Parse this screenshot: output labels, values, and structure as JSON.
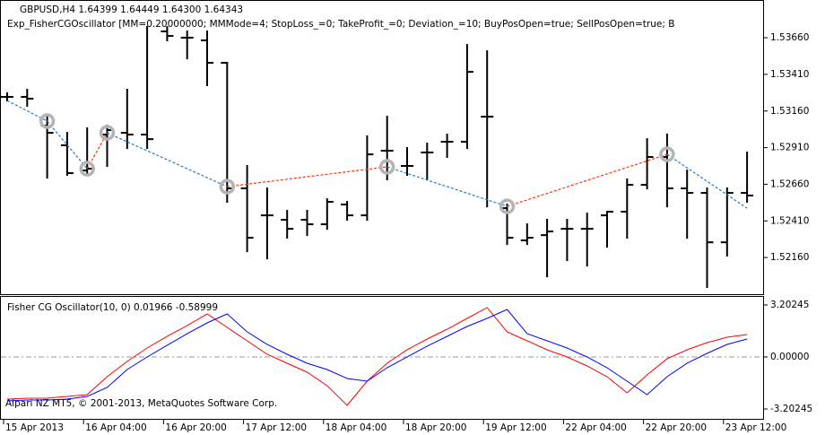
{
  "chart_data": [
    {
      "type": "ohlc",
      "title": "GBPUSD,H4  1.64399 1.64449 1.64300 1.64343",
      "subtitle": "Exp_FisherCGOscillator [MM=0.20000000; MMMode=4; StopLoss_=0; TakeProfit_=0; Deviation_=10; BuyPosOpen=true; SellPosOpen=true; B",
      "categories": [
        "15 Apr 2013",
        null,
        null,
        null,
        "16 Apr 04:00",
        null,
        null,
        null,
        "16 Apr 20:00",
        null,
        null,
        null,
        "17 Apr 12:00",
        null,
        null,
        null,
        "18 Apr 04:00",
        null,
        null,
        null,
        "18 Apr 20:00",
        null,
        null,
        null,
        "19 Apr 12:00",
        null,
        null,
        null,
        "22 Apr 04:00",
        null,
        null,
        null,
        "22 Apr 20:00",
        null,
        null,
        null,
        "23 Apr 12:00",
        null
      ],
      "open": [
        1.53256,
        1.53256,
        1.5306,
        1.52926,
        1.52754,
        1.52999,
        1.53011,
        1.52999,
        1.53703,
        1.5366,
        1.53642,
        1.53489,
        1.52632,
        1.52448,
        1.52418,
        1.52418,
        1.52387,
        1.52522,
        1.52448,
        1.52889,
        1.52785,
        1.52877,
        1.5295,
        1.5295,
        1.53121,
        1.52497,
        1.52277,
        1.52313,
        1.52356,
        1.52356,
        1.52448,
        1.52473,
        1.52656,
        1.52846,
        1.52632,
        1.52601,
        1.52264,
        1.52601
      ],
      "high": [
        1.53281,
        1.53305,
        1.53121,
        1.53011,
        1.53042,
        1.5306,
        1.53305,
        1.53733,
        1.53733,
        1.53703,
        1.53703,
        1.53489,
        1.52785,
        1.52632,
        1.52479,
        1.52479,
        1.52558,
        1.5254,
        1.52987,
        1.53121,
        1.52907,
        1.52938,
        1.52999,
        1.53611,
        1.53568,
        1.52522,
        1.52387,
        1.52418,
        1.52418,
        1.5246,
        1.52473,
        1.52693,
        1.52968,
        1.52999,
        1.52754,
        1.52632,
        1.52632,
        1.52877
      ],
      "low": [
        1.53231,
        1.53195,
        1.52705,
        1.52724,
        1.52724,
        1.52785,
        1.52907,
        1.52907,
        1.53642,
        1.53519,
        1.53336,
        1.5254,
        1.52203,
        1.52154,
        1.52295,
        1.52313,
        1.52356,
        1.52418,
        1.52418,
        1.52693,
        1.52724,
        1.52693,
        1.52846,
        1.52907,
        1.52509,
        1.52252,
        1.52252,
        1.52032,
        1.52142,
        1.52105,
        1.52234,
        1.52295,
        1.52632,
        1.52509,
        1.52295,
        1.51959,
        1.52173,
        1.5254
      ],
      "close": [
        1.53256,
        1.53244,
        1.53011,
        1.52736,
        1.52766,
        1.5303,
        1.52999,
        1.52968,
        1.53672,
        1.5366,
        1.53489,
        1.52632,
        1.52295,
        1.52448,
        1.52356,
        1.52387,
        1.5254,
        1.52448,
        1.52864,
        1.52889,
        1.52785,
        1.52877,
        1.5295,
        1.53427,
        1.53121,
        1.52295,
        1.52295,
        1.52338,
        1.52356,
        1.52356,
        1.52473,
        1.52656,
        1.52846,
        1.52632,
        1.52601,
        1.52264,
        1.52601,
        1.52583
      ],
      "color": "#000000",
      "signal": {
        "values": [
          1.53231,
          null,
          1.53091,
          null,
          1.52766,
          1.53011,
          null,
          null,
          null,
          null,
          null,
          1.52644,
          null,
          null,
          null,
          null,
          null,
          null,
          null,
          1.52779,
          null,
          null,
          null,
          null,
          null,
          1.52509,
          null,
          null,
          null,
          null,
          null,
          null,
          null,
          1.52864,
          null,
          null,
          null,
          1.52497
        ],
        "up_color": "#ff3300",
        "down_color": "#1f7fc8",
        "marker_color": "#b4b4b4"
      },
      "ylim": [
        1.5191,
        1.53899
      ],
      "yticks": [
        {
          "value": 1.5366,
          "label": "1.53660"
        },
        {
          "value": 1.5341,
          "label": "1.53410"
        },
        {
          "value": 1.5316,
          "label": "1.53160"
        },
        {
          "value": 1.5291,
          "label": "1.52910"
        },
        {
          "value": 1.5266,
          "label": "1.52660"
        },
        {
          "value": 1.5241,
          "label": "1.52410"
        },
        {
          "value": 1.5216,
          "label": "1.52160"
        }
      ]
    },
    {
      "type": "line",
      "title": "Fisher CG Oscillator(10, 0) 0.01966 -0.58999",
      "annotation": "Alpari NZ MT5, © 2001-2013, MetaQuotes Software Corp.",
      "series": [
        {
          "color": "#ff0000",
          "values": [
            -2.595,
            -2.54,
            -2.54,
            -2.429,
            -2.319,
            -1.215,
            -0.276,
            0.552,
            1.27,
            1.932,
            2.65,
            1.822,
            0.994,
            0.166,
            -0.386,
            -0.938,
            -1.767,
            -2.981,
            -1.491,
            -0.386,
            0.442,
            1.104,
            1.711,
            2.374,
            3.037,
            1.546,
            0.994,
            0.442,
            0,
            -0.552,
            -1.215,
            -2.208,
            -1.104,
            -0.11,
            0.442,
            0.883,
            1.215,
            1.38
          ]
        },
        {
          "color": "#0000ff",
          "values": [
            -2.705,
            -2.65,
            -2.65,
            -2.595,
            -2.429,
            -1.877,
            -0.773,
            0,
            0.718,
            1.435,
            2.098,
            2.65,
            1.546,
            0.773,
            0.166,
            -0.386,
            -0.773,
            -1.325,
            -1.491,
            -0.663,
            0,
            0.663,
            1.27,
            1.877,
            2.374,
            2.926,
            1.435,
            0.994,
            0.552,
            0,
            -0.663,
            -1.491,
            -2.319,
            -1.215,
            -0.386,
            0.221,
            0.773,
            1.104
          ]
        }
      ],
      "level_lines": [
        0
      ],
      "ylim": [
        -3.865,
        3.699
      ],
      "yticks": [
        {
          "value": 3.20245,
          "label": "3.20245"
        },
        {
          "value": 0,
          "label": "0.00000"
        },
        {
          "value": -3.20245,
          "label": "-3.20245"
        }
      ]
    }
  ]
}
